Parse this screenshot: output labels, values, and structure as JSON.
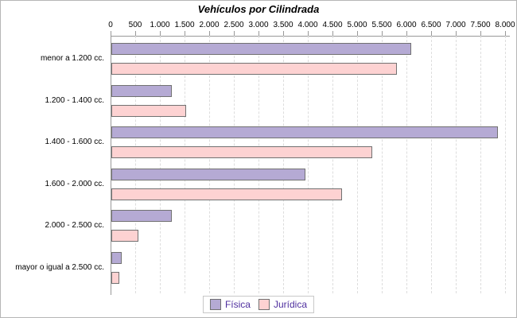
{
  "chart_data": {
    "type": "bar",
    "orientation": "horizontal",
    "title": "Vehículos por Cilindrada",
    "categories": [
      "menor a 1.200 cc.",
      "1.200 - 1.400 cc.",
      "1.400 - 1.600 cc.",
      "1.600 - 2.000 cc.",
      "2.000 - 2.500 cc.",
      "mayor o igual a 2.500 cc."
    ],
    "series": [
      {
        "name": "Física",
        "color": "#b5aad4",
        "values": [
          6050,
          1200,
          7800,
          3900,
          1200,
          175
        ]
      },
      {
        "name": "Jurídica",
        "color": "#fdd2d2",
        "values": [
          5750,
          1480,
          5250,
          4650,
          510,
          135
        ]
      }
    ],
    "xlim": [
      0,
      8000
    ],
    "x_tick_step": 500,
    "x_tick_labels": [
      "0",
      "500",
      "1.000",
      "1.500",
      "2.000",
      "2.500",
      "3.000",
      "3.500",
      "4.000",
      "4.500",
      "5.000",
      "5.500",
      "6.000",
      "6.500",
      "7.000",
      "7.500",
      "8.000"
    ],
    "grid": "vertical-dashed",
    "legend_position": "bottom"
  }
}
